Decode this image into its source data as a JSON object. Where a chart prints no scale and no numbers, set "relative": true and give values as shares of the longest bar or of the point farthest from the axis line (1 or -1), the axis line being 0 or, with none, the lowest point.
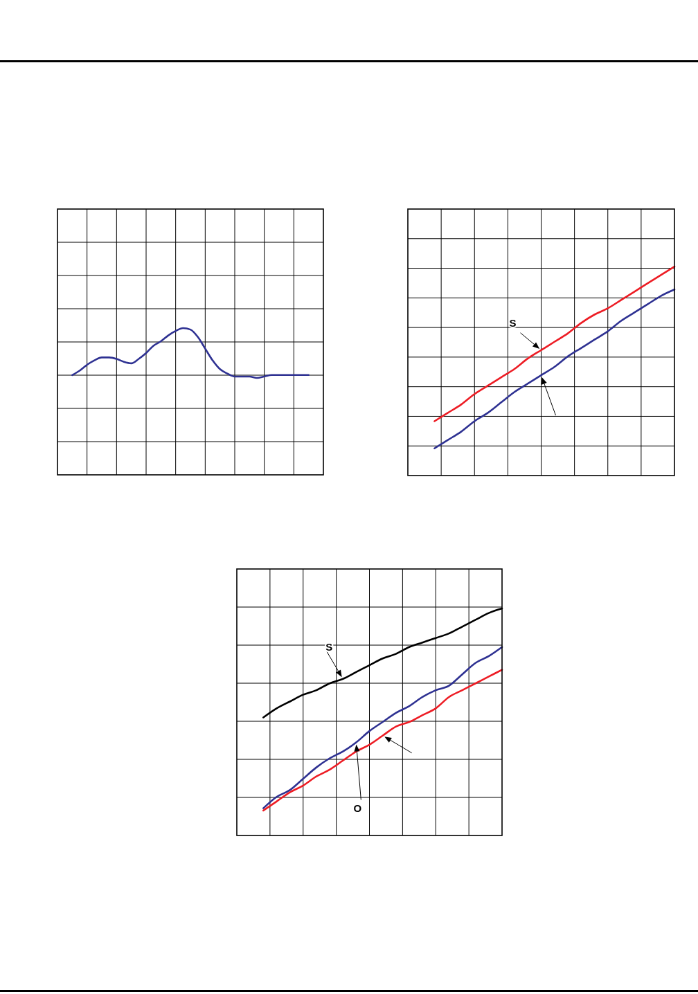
{
  "chart_data": [
    {
      "type": "line",
      "relative": true,
      "grid": true,
      "tick_labels": false,
      "categories": [
        null,
        null,
        null,
        null,
        null,
        null,
        null,
        null,
        null,
        null,
        null,
        null,
        null,
        null,
        null,
        null,
        null,
        null,
        null,
        null,
        null,
        null,
        null,
        null,
        null,
        null,
        null,
        null,
        null,
        null,
        null,
        null,
        null,
        null,
        null,
        null,
        null
      ],
      "series": [
        {
          "color": "#2e3192",
          "values": [
            null,
            null,
            0.68,
            0.71,
            0.75,
            0.78,
            0.8,
            0.8,
            0.79,
            0.77,
            0.76,
            0.79,
            0.83,
            0.88,
            0.91,
            0.95,
            0.98,
            1,
            0.99,
            0.94,
            0.86,
            0.78,
            0.72,
            0.69,
            0.67,
            0.67,
            0.67,
            0.66,
            0.67,
            0.68,
            0.68,
            0.68,
            0.68,
            0.68,
            0.68,
            null,
            null
          ]
        }
      ]
    },
    {
      "type": "line",
      "relative": true,
      "grid": true,
      "tick_labels": false,
      "annotations": [
        "S"
      ],
      "categories": [
        null,
        null,
        null,
        null,
        null,
        null,
        null,
        null,
        null,
        null,
        null,
        null,
        null,
        null,
        null,
        null,
        null,
        null,
        null,
        null,
        null
      ],
      "series": [
        {
          "color": "#ed1c24",
          "values": [
            null,
            null,
            0.26,
            0.3,
            0.34,
            0.39,
            0.43,
            0.47,
            0.51,
            0.56,
            0.6,
            0.64,
            0.68,
            0.73,
            0.77,
            0.8,
            0.84,
            0.88,
            0.92,
            0.96,
            1
          ]
        },
        {
          "color": "#2e3192",
          "values": [
            null,
            null,
            0.13,
            0.17,
            0.21,
            0.26,
            0.3,
            0.35,
            0.4,
            0.44,
            0.48,
            0.52,
            0.57,
            0.61,
            0.65,
            0.69,
            0.74,
            0.78,
            0.82,
            0.86,
            0.89
          ]
        }
      ]
    },
    {
      "type": "line",
      "relative": true,
      "grid": true,
      "tick_labels": false,
      "annotations": [
        "S",
        "O"
      ],
      "categories": [
        null,
        null,
        null,
        null,
        null,
        null,
        null,
        null,
        null,
        null,
        null,
        null,
        null,
        null,
        null,
        null,
        null,
        null,
        null,
        null,
        null
      ],
      "series": [
        {
          "color": "#000000",
          "values": [
            null,
            null,
            0.52,
            0.56,
            0.59,
            0.62,
            0.64,
            0.67,
            0.69,
            0.72,
            0.75,
            0.78,
            0.8,
            0.83,
            0.85,
            0.87,
            0.89,
            0.92,
            0.95,
            0.98,
            1
          ]
        },
        {
          "color": "#2e3192",
          "values": [
            null,
            null,
            0.12,
            0.17,
            0.2,
            0.25,
            0.3,
            0.34,
            0.37,
            0.41,
            0.46,
            0.5,
            0.54,
            0.57,
            0.61,
            0.64,
            0.66,
            0.71,
            0.76,
            0.79,
            0.83
          ]
        },
        {
          "color": "#ed1c24",
          "values": [
            null,
            null,
            0.11,
            0.15,
            0.19,
            0.22,
            0.26,
            0.29,
            0.33,
            0.37,
            0.4,
            0.44,
            0.48,
            0.5,
            0.53,
            0.56,
            0.61,
            0.64,
            0.67,
            0.7,
            0.73
          ]
        }
      ]
    }
  ]
}
